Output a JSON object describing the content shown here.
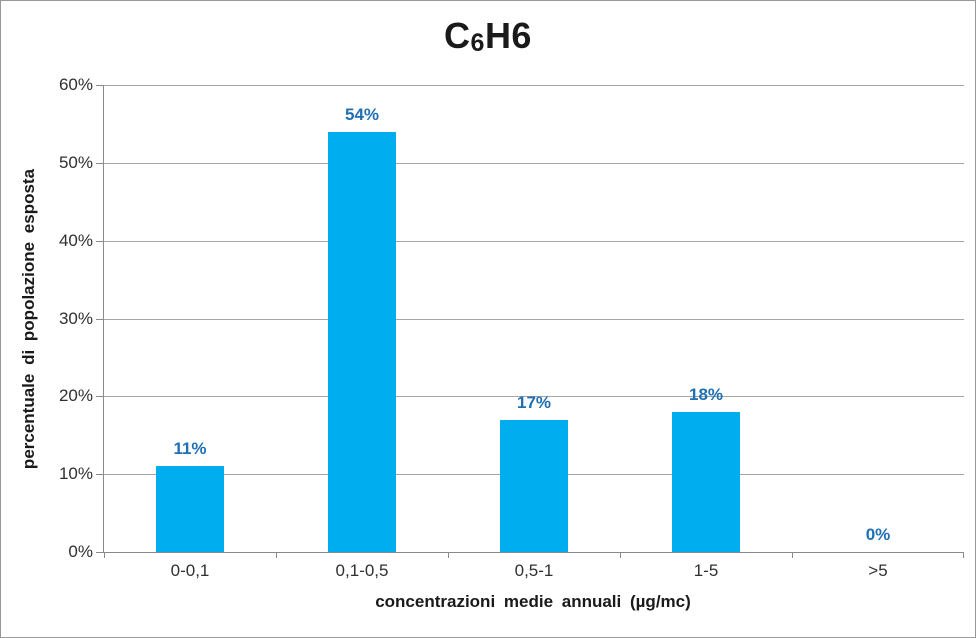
{
  "chart_data": {
    "type": "bar",
    "title": "C6H6",
    "title_parts": {
      "prefix": "C",
      "subscript": "6",
      "suffix": "H6"
    },
    "categories": [
      "0-0,1",
      "0,1-0,5",
      "0,5-1",
      "1-5",
      ">5"
    ],
    "values": [
      11,
      54,
      17,
      18,
      0
    ],
    "data_labels": [
      "11%",
      "54%",
      "17%",
      "18%",
      "0%"
    ],
    "xlabel": "concentrazioni medie annuali (µg/mc)",
    "ylabel": "percentuale di popolazione esposta",
    "ylim": [
      0,
      60
    ],
    "ytick_step": 10,
    "ytick_labels": [
      "0%",
      "10%",
      "20%",
      "30%",
      "40%",
      "50%",
      "60%"
    ],
    "grid": true,
    "legend_position": "none",
    "colors": {
      "bar": "#00AEEF",
      "data_label": "#1F6FB5",
      "gridline": "#A6A6A6",
      "axis": "#8A8A8A",
      "tick_text": "#303030",
      "title_text": "#1A1A1A",
      "background": "#FFFFFF",
      "border": "#989898"
    }
  }
}
